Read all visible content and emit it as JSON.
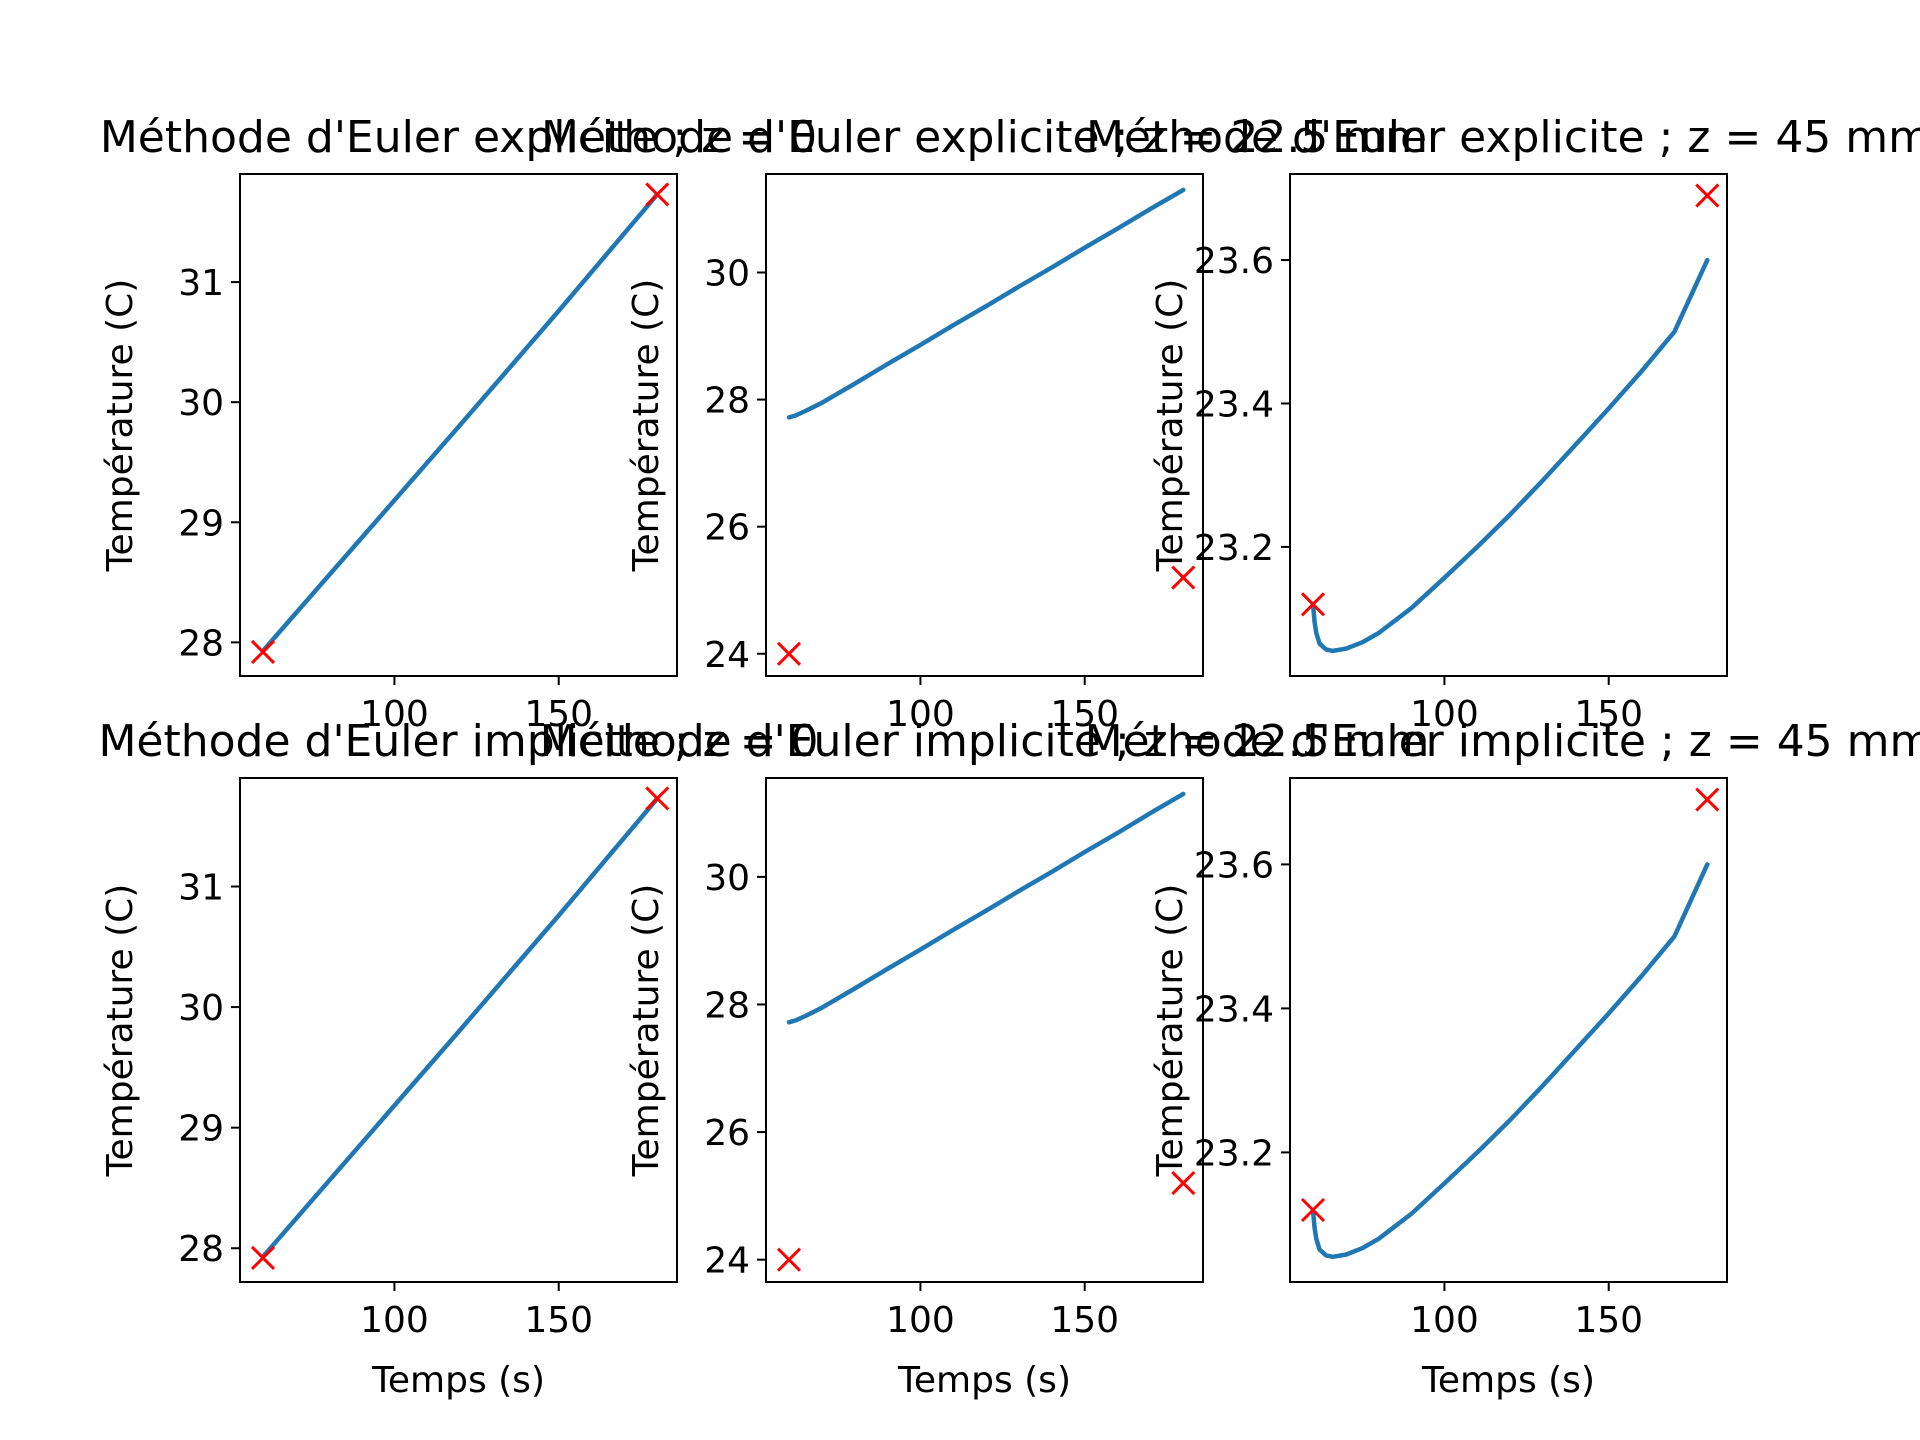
{
  "colors": {
    "line": "#1f77b4",
    "marker": "#ff0000",
    "axes": "#000000",
    "background": "#ffffff"
  },
  "chart_data": [
    {
      "type": "line",
      "title": "Méthode d'Euler explicite ; z = 0",
      "xlabel": "",
      "ylabel": "Température (C)",
      "xlim": [
        53,
        186
      ],
      "ylim": [
        27.72,
        31.9
      ],
      "xticks": [
        "100",
        "150"
      ],
      "xtick_values": [
        100,
        150
      ],
      "yticks": [
        "28",
        "29",
        "30",
        "31"
      ],
      "ytick_values": [
        28,
        29,
        30,
        31
      ],
      "grid": false,
      "series": [
        {
          "kind": "line",
          "x": [
            60,
            90,
            120,
            150,
            180
          ],
          "y": [
            27.93,
            28.87,
            29.81,
            30.76,
            31.73
          ]
        },
        {
          "kind": "marker",
          "x": [
            60,
            180
          ],
          "y": [
            27.92,
            31.73
          ]
        }
      ]
    },
    {
      "type": "line",
      "title": "Méthode d'Euler explicite ; z = 22.5 mm",
      "xlabel": "",
      "ylabel": "Température (C)",
      "xlim": [
        53,
        186
      ],
      "ylim": [
        23.65,
        31.55
      ],
      "xticks": [
        "100",
        "150"
      ],
      "xtick_values": [
        100,
        150
      ],
      "yticks": [
        "24",
        "26",
        "28",
        "30"
      ],
      "ytick_values": [
        24,
        26,
        28,
        30
      ],
      "grid": false,
      "series": [
        {
          "kind": "line",
          "x": [
            60,
            62,
            65,
            70,
            80,
            90,
            100,
            110,
            120,
            130,
            140,
            150,
            160,
            170,
            180
          ],
          "y": [
            27.72,
            27.75,
            27.82,
            27.95,
            28.25,
            28.56,
            28.86,
            29.17,
            29.47,
            29.78,
            30.08,
            30.39,
            30.69,
            31.0,
            31.3
          ]
        },
        {
          "kind": "marker",
          "x": [
            60,
            180
          ],
          "y": [
            24.0,
            25.2
          ]
        }
      ]
    },
    {
      "type": "line",
      "title": "Méthode d'Euler explicite ; z = 45 mm",
      "xlabel": "",
      "ylabel": "Température (C)",
      "xlim": [
        53,
        186
      ],
      "ylim": [
        23.02,
        23.72
      ],
      "xticks": [
        "100",
        "150"
      ],
      "xtick_values": [
        100,
        150
      ],
      "yticks": [
        "23.2",
        "23.4",
        "23.6"
      ],
      "ytick_values": [
        23.2,
        23.4,
        23.6
      ],
      "grid": false,
      "series": [
        {
          "kind": "line",
          "x": [
            60,
            60.5,
            61,
            62,
            64,
            66,
            70,
            75,
            80,
            90,
            100,
            110,
            120,
            130,
            140,
            150,
            160,
            170,
            180
          ],
          "y": [
            23.12,
            23.095,
            23.08,
            23.065,
            23.057,
            23.055,
            23.058,
            23.067,
            23.08,
            23.115,
            23.157,
            23.2,
            23.245,
            23.293,
            23.343,
            23.393,
            23.445,
            23.5,
            23.6
          ]
        },
        {
          "kind": "marker",
          "x": [
            60,
            180
          ],
          "y": [
            23.12,
            23.69
          ]
        }
      ]
    },
    {
      "type": "line",
      "title": "Méthode d'Euler implicite ; z = 0",
      "xlabel": "Temps (s)",
      "ylabel": "Température (C)",
      "xlim": [
        53,
        186
      ],
      "ylim": [
        27.72,
        31.9
      ],
      "xticks": [
        "100",
        "150"
      ],
      "xtick_values": [
        100,
        150
      ],
      "yticks": [
        "28",
        "29",
        "30",
        "31"
      ],
      "ytick_values": [
        28,
        29,
        30,
        31
      ],
      "grid": false,
      "series": [
        {
          "kind": "line",
          "x": [
            60,
            90,
            120,
            150,
            180
          ],
          "y": [
            27.93,
            28.87,
            29.81,
            30.76,
            31.73
          ]
        },
        {
          "kind": "marker",
          "x": [
            60,
            180
          ],
          "y": [
            27.92,
            31.73
          ]
        }
      ]
    },
    {
      "type": "line",
      "title": "Méthode d'Euler implicite ; z = 22.5 mm",
      "xlabel": "Temps (s)",
      "ylabel": "Température (C)",
      "xlim": [
        53,
        186
      ],
      "ylim": [
        23.65,
        31.55
      ],
      "xticks": [
        "100",
        "150"
      ],
      "xtick_values": [
        100,
        150
      ],
      "yticks": [
        "24",
        "26",
        "28",
        "30"
      ],
      "ytick_values": [
        24,
        26,
        28,
        30
      ],
      "grid": false,
      "series": [
        {
          "kind": "line",
          "x": [
            60,
            62,
            65,
            70,
            80,
            90,
            100,
            110,
            120,
            130,
            140,
            150,
            160,
            170,
            180
          ],
          "y": [
            27.72,
            27.75,
            27.82,
            27.95,
            28.25,
            28.56,
            28.86,
            29.17,
            29.47,
            29.78,
            30.08,
            30.39,
            30.69,
            31.0,
            31.3
          ]
        },
        {
          "kind": "marker",
          "x": [
            60,
            180
          ],
          "y": [
            24.0,
            25.2
          ]
        }
      ]
    },
    {
      "type": "line",
      "title": "Méthode d'Euler implicite ; z = 45 mm",
      "xlabel": "Temps (s)",
      "ylabel": "Température (C)",
      "xlim": [
        53,
        186
      ],
      "ylim": [
        23.02,
        23.72
      ],
      "xticks": [
        "100",
        "150"
      ],
      "xtick_values": [
        100,
        150
      ],
      "yticks": [
        "23.2",
        "23.4",
        "23.6"
      ],
      "ytick_values": [
        23.2,
        23.4,
        23.6
      ],
      "grid": false,
      "series": [
        {
          "kind": "line",
          "x": [
            60,
            60.5,
            61,
            62,
            64,
            66,
            70,
            75,
            80,
            90,
            100,
            110,
            120,
            130,
            140,
            150,
            160,
            170,
            180
          ],
          "y": [
            23.12,
            23.095,
            23.08,
            23.065,
            23.057,
            23.055,
            23.058,
            23.067,
            23.08,
            23.115,
            23.157,
            23.2,
            23.245,
            23.293,
            23.343,
            23.393,
            23.445,
            23.5,
            23.6
          ]
        },
        {
          "kind": "marker",
          "x": [
            60,
            180
          ],
          "y": [
            23.12,
            23.69
          ]
        }
      ]
    }
  ]
}
